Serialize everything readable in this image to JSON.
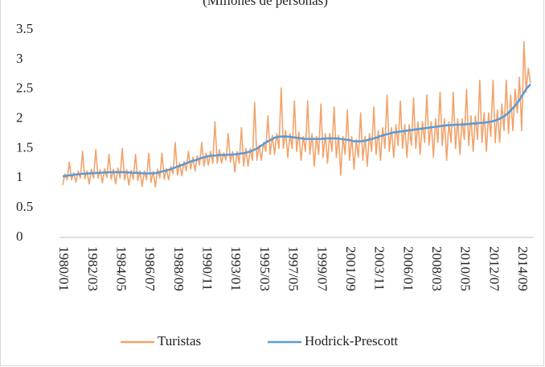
{
  "chart_data": {
    "type": "line",
    "title": "(Millones de personas)",
    "categories": [
      "1980/01",
      null,
      null,
      null,
      null,
      null,
      null,
      null,
      null,
      null,
      null,
      null,
      null,
      "1982/03",
      null,
      null,
      null,
      null,
      null,
      null,
      null,
      null,
      null,
      null,
      null,
      null,
      "1984/05",
      null,
      null,
      null,
      null,
      null,
      null,
      null,
      null,
      null,
      null,
      null,
      null,
      "1986/07",
      null,
      null,
      null,
      null,
      null,
      null,
      null,
      null,
      null,
      null,
      null,
      null,
      "1988/09",
      null,
      null,
      null,
      null,
      null,
      null,
      null,
      null,
      null,
      null,
      null,
      null,
      "1990/11",
      null,
      null,
      null,
      null,
      null,
      null,
      null,
      null,
      null,
      null,
      null,
      null,
      "1993/01",
      null,
      null,
      null,
      null,
      null,
      null,
      null,
      null,
      null,
      null,
      null,
      null,
      "1995/03",
      null,
      null,
      null,
      null,
      null,
      null,
      null,
      null,
      null,
      null,
      null,
      null,
      "1997/05",
      null,
      null,
      null,
      null,
      null,
      null,
      null,
      null,
      null,
      null,
      null,
      null,
      "1999/07",
      null,
      null,
      null,
      null,
      null,
      null,
      null,
      null,
      null,
      null,
      null,
      null,
      "2001/09",
      null,
      null,
      null,
      null,
      null,
      null,
      null,
      null,
      null,
      null,
      null,
      null,
      "2003/11",
      null,
      null,
      null,
      null,
      null,
      null,
      null,
      null,
      null,
      null,
      null,
      null,
      "2006/01",
      null,
      null,
      null,
      null,
      null,
      null,
      null,
      null,
      null,
      null,
      null,
      null,
      "2008/03",
      null,
      null,
      null,
      null,
      null,
      null,
      null,
      null,
      null,
      null,
      null,
      null,
      "2010/05",
      null,
      null,
      null,
      null,
      null,
      null,
      null,
      null,
      null,
      null,
      null,
      null,
      "2012/07",
      null,
      null,
      null,
      null,
      null,
      null,
      null,
      null,
      null,
      null,
      null,
      null,
      "2014/09",
      null,
      null,
      null,
      null
    ],
    "series": [
      {
        "name": "Turistas",
        "color": "#f2a36b",
        "values": [
          0.88,
          1.07,
          0.97,
          1.27,
          0.97,
          1.09,
          0.93,
          1.12,
          1.0,
          1.45,
          0.99,
          1.12,
          0.9,
          1.15,
          1.0,
          1.48,
          1.0,
          1.14,
          0.92,
          1.16,
          1.01,
          1.4,
          0.98,
          1.15,
          0.9,
          1.17,
          1.0,
          1.5,
          0.97,
          1.14,
          0.88,
          1.13,
          0.98,
          1.4,
          0.96,
          1.12,
          0.86,
          1.12,
          0.97,
          1.42,
          0.93,
          1.11,
          0.85,
          1.15,
          1.0,
          1.42,
          0.98,
          1.16,
          0.97,
          1.2,
          1.07,
          1.6,
          1.05,
          1.25,
          1.04,
          1.28,
          1.12,
          1.45,
          1.15,
          1.35,
          1.12,
          1.38,
          1.22,
          1.6,
          1.2,
          1.42,
          1.22,
          1.45,
          1.25,
          1.95,
          1.25,
          1.48,
          1.25,
          1.42,
          1.3,
          1.75,
          1.27,
          1.45,
          1.1,
          1.45,
          1.25,
          1.85,
          1.2,
          1.5,
          1.2,
          1.5,
          1.3,
          2.28,
          1.3,
          1.55,
          1.3,
          1.6,
          1.45,
          2.05,
          1.4,
          1.72,
          1.4,
          1.75,
          1.5,
          2.52,
          1.5,
          1.8,
          1.35,
          1.75,
          1.5,
          2.3,
          1.45,
          1.78,
          1.3,
          1.7,
          1.45,
          2.3,
          1.4,
          1.75,
          1.2,
          1.7,
          1.4,
          2.25,
          1.35,
          1.75,
          1.25,
          1.75,
          1.45,
          2.2,
          1.35,
          1.72,
          1.05,
          1.7,
          1.4,
          2.15,
          1.3,
          1.7,
          1.15,
          1.65,
          1.35,
          2.1,
          1.3,
          1.7,
          1.2,
          1.75,
          1.45,
          2.2,
          1.4,
          1.8,
          1.3,
          1.85,
          1.5,
          2.4,
          1.45,
          1.85,
          1.35,
          1.9,
          1.55,
          2.3,
          1.5,
          1.9,
          1.35,
          1.9,
          1.55,
          2.35,
          1.5,
          1.95,
          1.4,
          1.95,
          1.6,
          2.4,
          1.55,
          1.95,
          1.35,
          2.0,
          1.6,
          2.45,
          1.55,
          2.0,
          1.3,
          1.95,
          1.6,
          2.45,
          1.5,
          2.0,
          1.4,
          2.0,
          1.65,
          2.5,
          1.55,
          2.05,
          1.45,
          2.05,
          1.65,
          2.65,
          1.6,
          2.1,
          1.45,
          2.1,
          1.7,
          2.65,
          1.6,
          2.15,
          1.6,
          2.25,
          1.8,
          2.65,
          1.75,
          2.4,
          1.8,
          2.5,
          2.1,
          2.7,
          1.8,
          3.3,
          2.45,
          2.85,
          2.6
        ]
      },
      {
        "name": "Hodrick-Prescott",
        "color": "#5b9bd5",
        "values": [
          1.03,
          1.035,
          1.04,
          1.045,
          1.05,
          1.055,
          1.06,
          1.064,
          1.068,
          1.072,
          1.076,
          1.078,
          1.08,
          1.082,
          1.084,
          1.086,
          1.088,
          1.09,
          1.092,
          1.094,
          1.096,
          1.098,
          1.1,
          1.1,
          1.1,
          1.1,
          1.1,
          1.1,
          1.1,
          1.1,
          1.095,
          1.092,
          1.09,
          1.09,
          1.088,
          1.085,
          1.082,
          1.08,
          1.08,
          1.08,
          1.08,
          1.082,
          1.085,
          1.09,
          1.1,
          1.11,
          1.12,
          1.13,
          1.14,
          1.15,
          1.165,
          1.18,
          1.195,
          1.21,
          1.22,
          1.235,
          1.25,
          1.265,
          1.28,
          1.29,
          1.3,
          1.31,
          1.325,
          1.34,
          1.35,
          1.36,
          1.37,
          1.375,
          1.38,
          1.38,
          1.385,
          1.388,
          1.39,
          1.39,
          1.392,
          1.395,
          1.395,
          1.398,
          1.4,
          1.405,
          1.41,
          1.415,
          1.42,
          1.43,
          1.44,
          1.45,
          1.465,
          1.48,
          1.5,
          1.52,
          1.55,
          1.57,
          1.6,
          1.62,
          1.64,
          1.66,
          1.68,
          1.69,
          1.7,
          1.7,
          1.7,
          1.7,
          1.7,
          1.695,
          1.69,
          1.685,
          1.68,
          1.675,
          1.67,
          1.665,
          1.66,
          1.66,
          1.66,
          1.66,
          1.66,
          1.66,
          1.66,
          1.66,
          1.665,
          1.665,
          1.67,
          1.67,
          1.67,
          1.67,
          1.668,
          1.665,
          1.66,
          1.655,
          1.65,
          1.645,
          1.64,
          1.63,
          1.62,
          1.62,
          1.62,
          1.62,
          1.625,
          1.63,
          1.64,
          1.65,
          1.66,
          1.67,
          1.68,
          1.69,
          1.71,
          1.72,
          1.73,
          1.74,
          1.75,
          1.76,
          1.77,
          1.775,
          1.78,
          1.785,
          1.79,
          1.795,
          1.8,
          1.805,
          1.81,
          1.815,
          1.82,
          1.825,
          1.83,
          1.835,
          1.84,
          1.845,
          1.85,
          1.855,
          1.86,
          1.865,
          1.87,
          1.875,
          1.88,
          1.885,
          1.89,
          1.89,
          1.895,
          1.895,
          1.9,
          1.9,
          1.9,
          1.905,
          1.905,
          1.91,
          1.91,
          1.915,
          1.92,
          1.92,
          1.925,
          1.93,
          1.93,
          1.935,
          1.94,
          1.945,
          1.95,
          1.96,
          1.97,
          1.985,
          2.0,
          2.02,
          2.04,
          2.07,
          2.1,
          2.14,
          2.18,
          2.22,
          2.27,
          2.32,
          2.38,
          2.44,
          2.5,
          2.54,
          2.58
        ]
      }
    ],
    "ylim": [
      0,
      3.5
    ],
    "yticks": [
      0,
      0.5,
      1,
      1.5,
      2,
      2.5,
      3,
      3.5
    ],
    "grid": false
  }
}
